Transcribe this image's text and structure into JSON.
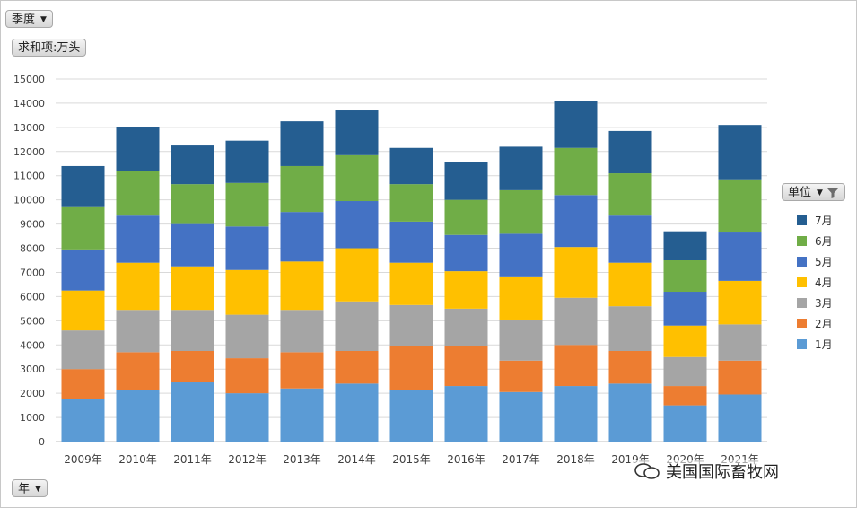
{
  "controls": {
    "season_filter": "季度",
    "sum_field": "求和项:万头",
    "year_field": "年",
    "unit_field": "单位"
  },
  "watermark": "美国国际畜牧网",
  "chart_data": {
    "type": "bar",
    "stacked": true,
    "title": "",
    "xlabel": "",
    "ylabel": "",
    "ylim": [
      0,
      15000
    ],
    "yticks": [
      0,
      1000,
      2000,
      3000,
      4000,
      5000,
      6000,
      7000,
      8000,
      9000,
      10000,
      11000,
      12000,
      13000,
      14000,
      15000
    ],
    "grid": true,
    "legend_position": "right",
    "categories": [
      "2009年",
      "2010年",
      "2011年",
      "2012年",
      "2013年",
      "2014年",
      "2015年",
      "2016年",
      "2017年",
      "2018年",
      "2019年",
      "2020年",
      "2021年"
    ],
    "series": [
      {
        "name": "1月",
        "color": "#5B9BD5",
        "values": [
          1750,
          2150,
          2450,
          2000,
          2200,
          2400,
          2150,
          2300,
          2050,
          2300,
          2400,
          1500,
          1950
        ]
      },
      {
        "name": "2月",
        "color": "#ED7D31",
        "values": [
          1250,
          1550,
          1300,
          1450,
          1500,
          1350,
          1800,
          1650,
          1300,
          1700,
          1350,
          800,
          1400
        ]
      },
      {
        "name": "3月",
        "color": "#A5A5A5",
        "values": [
          1600,
          1750,
          1700,
          1800,
          1750,
          2050,
          1700,
          1550,
          1700,
          1950,
          1850,
          1200,
          1500
        ]
      },
      {
        "name": "4月",
        "color": "#FFC000",
        "values": [
          1650,
          1950,
          1800,
          1850,
          2000,
          2200,
          1750,
          1550,
          1750,
          2100,
          1800,
          1300,
          1800
        ]
      },
      {
        "name": "5月",
        "color": "#4472C4",
        "values": [
          1700,
          1950,
          1750,
          1800,
          2050,
          1950,
          1700,
          1500,
          1800,
          2150,
          1950,
          1400,
          2000
        ]
      },
      {
        "name": "6月",
        "color": "#70AD47",
        "values": [
          1750,
          1850,
          1650,
          1800,
          1900,
          1900,
          1550,
          1450,
          1800,
          1950,
          1750,
          1300,
          2200
        ]
      },
      {
        "name": "7月",
        "color": "#255E91",
        "values": [
          1700,
          1800,
          1600,
          1750,
          1850,
          1850,
          1500,
          1550,
          1800,
          1950,
          1750,
          1200,
          2250
        ]
      }
    ]
  }
}
